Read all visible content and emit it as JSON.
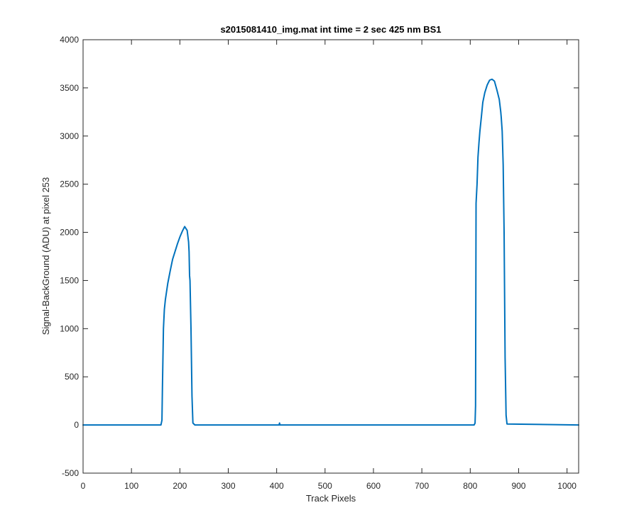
{
  "chart_data": {
    "type": "line",
    "title": "s2015081410_img.mat int time = 2 sec  425 nm BS1",
    "xlabel": "Track Pixels",
    "ylabel": "Signal-BackGround (ADU) at pixel 253",
    "xlim": [
      0,
      1024
    ],
    "ylim": [
      -500,
      4000
    ],
    "x_ticks": [
      "0",
      "100",
      "200",
      "300",
      "400",
      "500",
      "600",
      "700",
      "800",
      "900",
      "1000"
    ],
    "y_ticks": [
      "-500",
      "0",
      "500",
      "1000",
      "1500",
      "2000",
      "2500",
      "3000",
      "3500",
      "4000"
    ],
    "grid": false,
    "legend": "none",
    "series": [
      {
        "color": "#0072BD",
        "x": [
          0,
          161,
          163,
          164,
          166,
          168,
          170,
          175,
          180,
          185,
          190,
          195,
          200,
          205,
          210,
          215,
          218,
          219,
          220,
          221,
          223,
          225,
          227,
          231,
          405,
          406,
          407,
          808,
          810,
          811,
          812,
          814,
          816,
          818,
          820,
          823,
          826,
          830,
          835,
          840,
          845,
          850,
          855,
          860,
          863,
          864,
          866,
          868,
          870,
          872,
          874,
          876,
          1024
        ],
        "values": [
          0,
          0,
          50,
          400,
          1000,
          1200,
          1300,
          1470,
          1600,
          1720,
          1800,
          1880,
          1950,
          2010,
          2060,
          2020,
          1900,
          1800,
          1550,
          1500,
          1000,
          300,
          20,
          0,
          0,
          20,
          0,
          0,
          20,
          200,
          2300,
          2500,
          2780,
          2930,
          3050,
          3200,
          3350,
          3450,
          3530,
          3580,
          3590,
          3570,
          3480,
          3380,
          3250,
          3200,
          3050,
          2700,
          2000,
          700,
          100,
          10,
          0
        ]
      }
    ]
  }
}
